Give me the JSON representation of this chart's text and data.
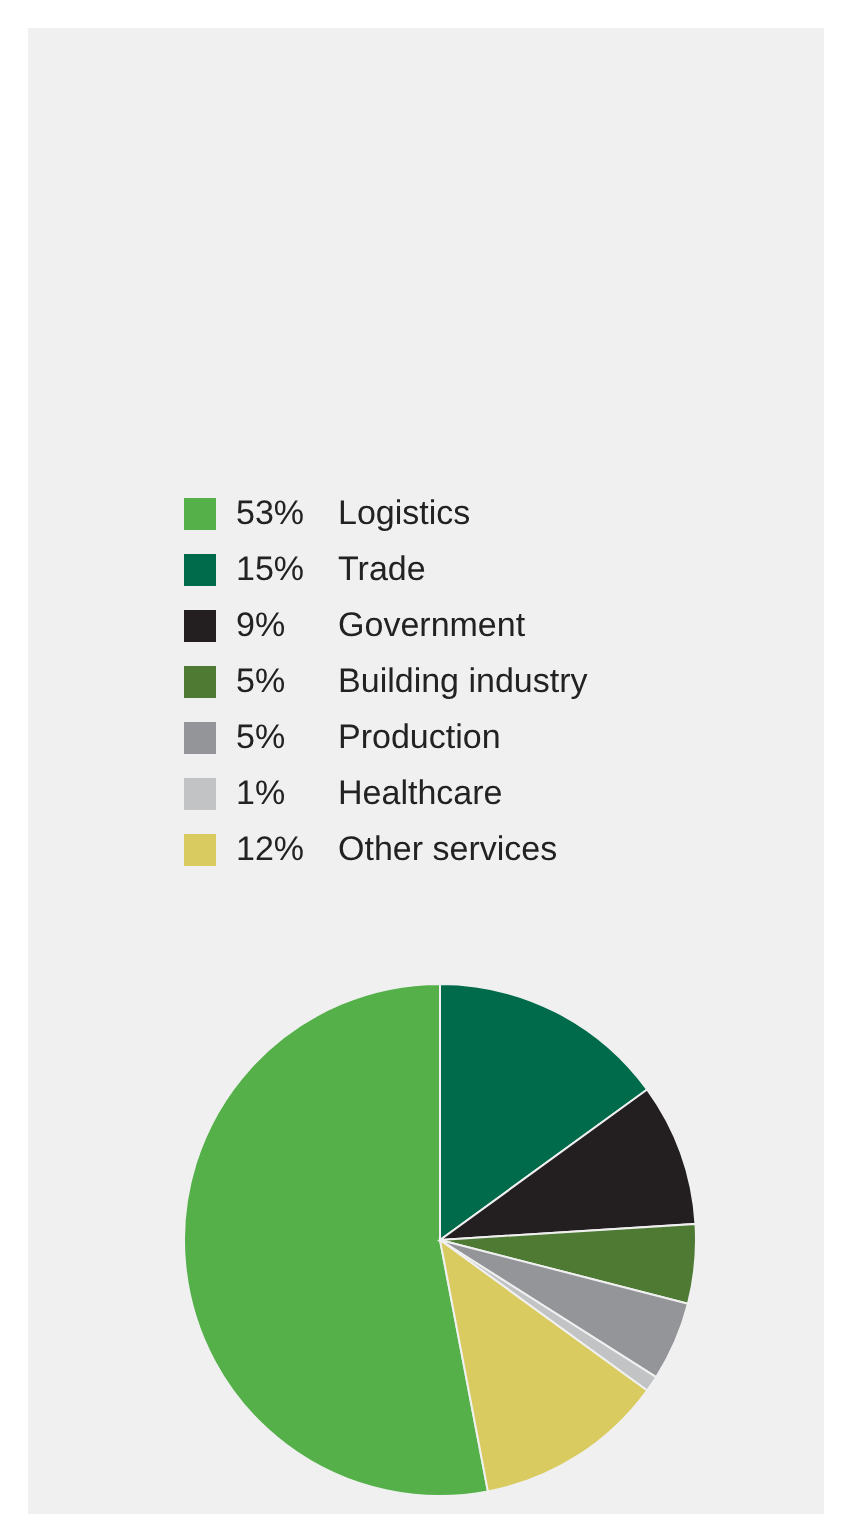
{
  "chart_data": {
    "type": "pie",
    "categories": [
      "Logistics",
      "Trade",
      "Government",
      "Building industry",
      "Production",
      "Healthcare",
      "Other services"
    ],
    "values": [
      53,
      15,
      9,
      5,
      5,
      1,
      12
    ],
    "value_labels": [
      "53%",
      "15%",
      "9%",
      "5%",
      "5%",
      "1%",
      "12%"
    ],
    "colors": [
      "#55b04a",
      "#006b4a",
      "#231f20",
      "#4e7a34",
      "#949599",
      "#c2c3c5",
      "#d9cb5f"
    ],
    "legend": "top"
  }
}
